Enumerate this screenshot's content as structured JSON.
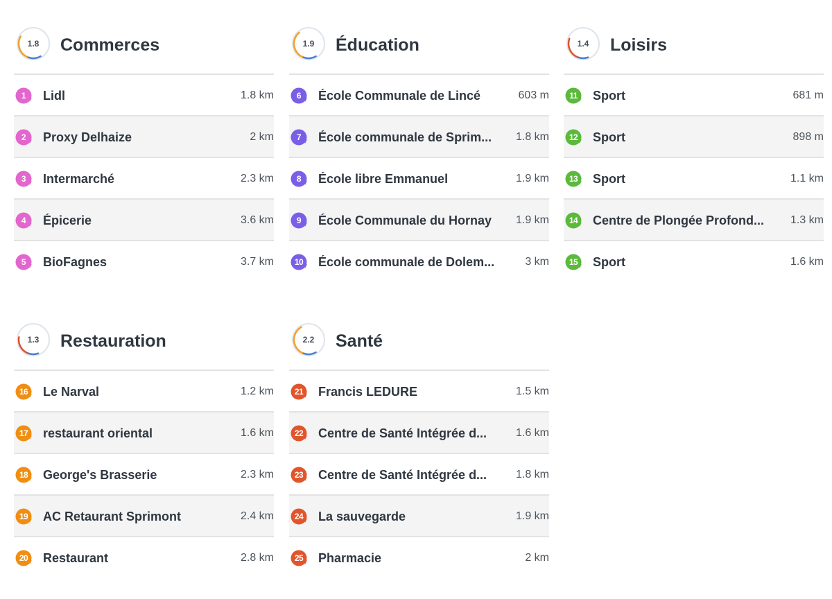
{
  "colors": {
    "commerces": "#e266cd",
    "education": "#7a5fe6",
    "loisirs": "#5bb93c",
    "restauration": "#f08e13",
    "sante": "#e1552c",
    "score_ring": "#dfe5ea",
    "score_arc_orange": "#f0a032",
    "score_arc_blue": "#4a7fd1",
    "score_arc_red": "#e0502e"
  },
  "icons": {
    "score": "score-ring-icon",
    "marker": "map-pin-icon"
  },
  "categories": [
    {
      "id": "commerces",
      "title": "Commerces",
      "score": "1.8",
      "items": [
        {
          "num": "1",
          "name": "Lidl",
          "distance": "1.8 km"
        },
        {
          "num": "2",
          "name": "Proxy Delhaize",
          "distance": "2 km"
        },
        {
          "num": "3",
          "name": "Intermarché",
          "distance": "2.3 km"
        },
        {
          "num": "4",
          "name": "Épicerie",
          "distance": "3.6 km"
        },
        {
          "num": "5",
          "name": "BioFagnes",
          "distance": "3.7 km"
        }
      ]
    },
    {
      "id": "education",
      "title": "Éducation",
      "score": "1.9",
      "items": [
        {
          "num": "6",
          "name": "École Communale de Lincé",
          "distance": "603 m"
        },
        {
          "num": "7",
          "name": "École communale de Sprim...",
          "distance": "1.8 km"
        },
        {
          "num": "8",
          "name": "École libre Emmanuel",
          "distance": "1.9 km"
        },
        {
          "num": "9",
          "name": "École Communale du Hornay",
          "distance": "1.9 km"
        },
        {
          "num": "10",
          "name": "École communale de Dolem...",
          "distance": "3 km"
        }
      ]
    },
    {
      "id": "loisirs",
      "title": "Loisirs",
      "score": "1.4",
      "items": [
        {
          "num": "11",
          "name": "Sport",
          "distance": "681 m"
        },
        {
          "num": "12",
          "name": "Sport",
          "distance": "898 m"
        },
        {
          "num": "13",
          "name": "Sport",
          "distance": "1.1 km"
        },
        {
          "num": "14",
          "name": "Centre de Plongée Profond...",
          "distance": "1.3 km"
        },
        {
          "num": "15",
          "name": "Sport",
          "distance": "1.6 km"
        }
      ]
    },
    {
      "id": "restauration",
      "title": "Restauration",
      "score": "1.3",
      "items": [
        {
          "num": "16",
          "name": "Le Narval",
          "distance": "1.2 km"
        },
        {
          "num": "17",
          "name": "restaurant oriental",
          "distance": "1.6 km"
        },
        {
          "num": "18",
          "name": "George's Brasserie",
          "distance": "2.3 km"
        },
        {
          "num": "19",
          "name": "AC Retaurant Sprimont",
          "distance": "2.4 km"
        },
        {
          "num": "20",
          "name": "Restaurant",
          "distance": "2.8 km"
        }
      ]
    },
    {
      "id": "sante",
      "title": "Santé",
      "score": "2.2",
      "items": [
        {
          "num": "21",
          "name": "Francis LEDURE",
          "distance": "1.5 km"
        },
        {
          "num": "22",
          "name": "Centre de Santé Intégrée d...",
          "distance": "1.6 km"
        },
        {
          "num": "23",
          "name": "Centre de Santé Intégrée d...",
          "distance": "1.8 km"
        },
        {
          "num": "24",
          "name": "La sauvegarde",
          "distance": "1.9 km"
        },
        {
          "num": "25",
          "name": "Pharmacie",
          "distance": "2 km"
        }
      ]
    }
  ]
}
